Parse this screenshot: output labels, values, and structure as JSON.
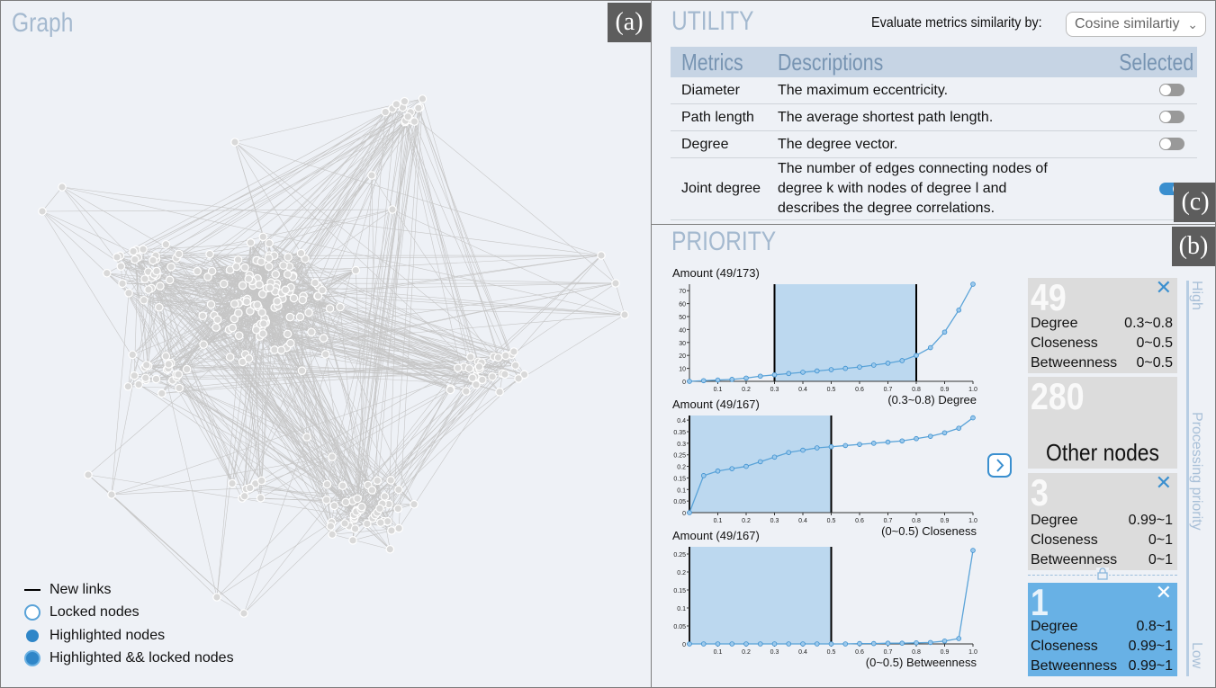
{
  "graph": {
    "title": "Graph",
    "tag": "(a)",
    "legend": [
      {
        "label": "New links",
        "kind": "line"
      },
      {
        "label": "Locked nodes",
        "kind": "ring"
      },
      {
        "label": "Highlighted nodes",
        "kind": "dot"
      },
      {
        "label": "Highlighted && locked nodes",
        "kind": "dot-ring"
      }
    ]
  },
  "utility": {
    "title": "UTILITY",
    "tag": "(c)",
    "similarity_label": "Evaluate metrics similarity by:",
    "similarity_value": "Cosine similartiy",
    "headers": {
      "metrics": "Metrics",
      "descriptions": "Descriptions",
      "selected": "Selected"
    },
    "rows": [
      {
        "metric": "Diameter",
        "description": "The maximum eccentricity.",
        "selected": false
      },
      {
        "metric": "Path length",
        "description": "The average shortest path length.",
        "selected": false
      },
      {
        "metric": "Degree",
        "description": "The degree vector.",
        "selected": false
      },
      {
        "metric": "Joint degree",
        "description": "The number of edges connecting nodes of degree k with nodes of degree l and describes the degree correlations.",
        "selected": true
      }
    ]
  },
  "priority": {
    "title": "PRIORITY",
    "tag": "(b)",
    "apply_icon": "chevron-right-icon",
    "axis_high": "High",
    "axis_mid": "Processing priority",
    "axis_low": "Low",
    "cards": [
      {
        "count": "49",
        "closable": true,
        "highlighted": false,
        "rows": [
          [
            "Degree",
            "0.3~0.8"
          ],
          [
            "Closeness",
            "0~0.5"
          ],
          [
            "Betweenness",
            "0~0.5"
          ]
        ]
      },
      {
        "count": "280",
        "closable": false,
        "highlighted": false,
        "caption": "Other nodes",
        "rows": []
      },
      {
        "count": "3",
        "closable": true,
        "highlighted": false,
        "rows": [
          [
            "Degree",
            "0.99~1"
          ],
          [
            "Closeness",
            "0~1"
          ],
          [
            "Betweenness",
            "0~1"
          ]
        ]
      },
      {
        "count": "1",
        "closable": true,
        "highlighted": true,
        "rows": [
          [
            "Degree",
            "0.8~1"
          ],
          [
            "Closeness",
            "0.99~1"
          ],
          [
            "Betweenness",
            "0.99~1"
          ]
        ]
      }
    ]
  },
  "chart_data": [
    {
      "type": "line",
      "title": "Amount (49/173)",
      "xlabel": "(0.3~0.8) Degree",
      "x": [
        0,
        0.05,
        0.1,
        0.15,
        0.2,
        0.25,
        0.3,
        0.35,
        0.4,
        0.45,
        0.5,
        0.55,
        0.6,
        0.65,
        0.7,
        0.75,
        0.8,
        0.85,
        0.9,
        0.95,
        1.0
      ],
      "values": [
        0,
        0.5,
        1,
        1.5,
        2.5,
        4,
        5,
        6,
        7,
        8,
        9,
        10,
        11,
        12.5,
        14,
        16,
        20,
        26,
        38,
        55,
        76
      ],
      "ylim": [
        0,
        75
      ],
      "yticks": [
        0,
        10,
        20,
        30,
        40,
        50,
        60,
        70
      ],
      "xticks": [
        0.1,
        0.2,
        0.3,
        0.4,
        0.5,
        0.6,
        0.7,
        0.8,
        0.9,
        1.0
      ],
      "selection": [
        0.3,
        0.8
      ]
    },
    {
      "type": "line",
      "title": "Amount (49/167)",
      "xlabel": "(0~0.5) Closeness",
      "x": [
        0,
        0.05,
        0.1,
        0.15,
        0.2,
        0.25,
        0.3,
        0.35,
        0.4,
        0.45,
        0.5,
        0.55,
        0.6,
        0.65,
        0.7,
        0.75,
        0.8,
        0.85,
        0.9,
        0.95,
        1.0
      ],
      "values": [
        0,
        0.16,
        0.18,
        0.19,
        0.2,
        0.22,
        0.24,
        0.26,
        0.27,
        0.28,
        0.285,
        0.29,
        0.295,
        0.3,
        0.305,
        0.31,
        0.32,
        0.33,
        0.345,
        0.365,
        0.41
      ],
      "ylim": [
        0,
        0.42
      ],
      "yticks": [
        0,
        0.05,
        0.1,
        0.15,
        0.2,
        0.25,
        0.3,
        0.35,
        0.4
      ],
      "xticks": [
        0.1,
        0.2,
        0.3,
        0.4,
        0.5,
        0.6,
        0.7,
        0.8,
        0.9,
        1.0
      ],
      "selection": [
        0,
        0.5
      ]
    },
    {
      "type": "line",
      "title": "Amount (49/167)",
      "xlabel": "(0~0.5) Betweenness",
      "x": [
        0,
        0.05,
        0.1,
        0.15,
        0.2,
        0.25,
        0.3,
        0.35,
        0.4,
        0.45,
        0.5,
        0.55,
        0.6,
        0.65,
        0.7,
        0.75,
        0.8,
        0.85,
        0.9,
        0.95,
        1.0
      ],
      "values": [
        0,
        0,
        0,
        0,
        0,
        0,
        0,
        0,
        0,
        0,
        0,
        0,
        0.001,
        0.001,
        0.002,
        0.002,
        0.003,
        0.004,
        0.008,
        0.015,
        0.26
      ],
      "ylim": [
        0,
        0.27
      ],
      "yticks": [
        0,
        0.05,
        0.1,
        0.15,
        0.2,
        0.25
      ],
      "xticks": [
        0.1,
        0.2,
        0.3,
        0.4,
        0.5,
        0.6,
        0.7,
        0.8,
        0.9,
        1.0
      ],
      "selection": [
        0,
        0.5
      ]
    }
  ]
}
